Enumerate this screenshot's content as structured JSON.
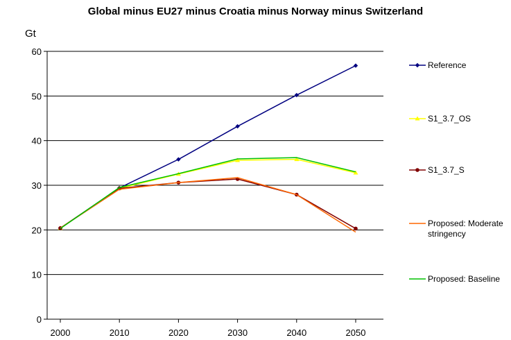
{
  "chart_data": {
    "type": "line",
    "title": "Global minus EU27 minus Croatia minus Norway minus Switzerland",
    "ylabel": "Gt",
    "xlabel": "",
    "x": [
      2000,
      2010,
      2020,
      2030,
      2040,
      2050
    ],
    "ylim": [
      0,
      60
    ],
    "yticks": [
      0,
      10,
      20,
      30,
      40,
      50,
      60
    ],
    "grid": true,
    "legend_position": "right",
    "series": [
      {
        "name": "Reference",
        "color": "#000080",
        "marker": "diamond",
        "values": [
          20.4,
          29.4,
          35.8,
          43.2,
          50.2,
          56.8
        ]
      },
      {
        "name": "S1_3.7_OS",
        "color": "#FFFF00",
        "marker": "triangle",
        "values": [
          20.4,
          29.3,
          32.5,
          35.6,
          35.8,
          32.8
        ]
      },
      {
        "name": "S1_3.7_S",
        "color": "#800000",
        "marker": "circle",
        "values": [
          20.4,
          29.3,
          30.6,
          31.4,
          27.9,
          20.3
        ]
      },
      {
        "name": "Proposed: Moderate stringency",
        "name_lines": [
          "Proposed: Moderate",
          "stringency"
        ],
        "color": "#FF6600",
        "marker": "none",
        "values": [
          20.4,
          29.1,
          30.6,
          31.7,
          27.9,
          19.5
        ]
      },
      {
        "name": "Proposed: Baseline",
        "color": "#00C000",
        "marker": "none",
        "values": [
          20.3,
          29.5,
          32.6,
          35.9,
          36.2,
          33.0
        ]
      }
    ]
  }
}
